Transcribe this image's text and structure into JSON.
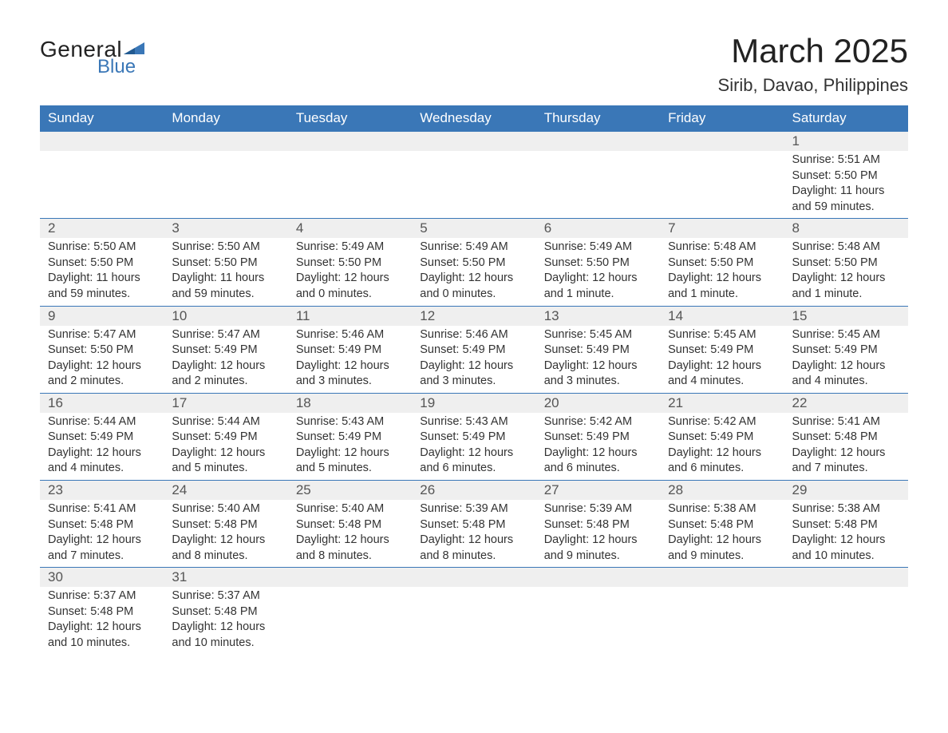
{
  "logo": {
    "general": "General",
    "blue": "Blue"
  },
  "title": "March 2025",
  "location": "Sirib, Davao, Philippines",
  "colors": {
    "header_bg": "#3a77b7",
    "header_text": "#ffffff",
    "daynum_bg": "#efefef",
    "border": "#3a77b7",
    "text": "#333333",
    "logo_blue": "#3a77b7"
  },
  "weekdays": [
    "Sunday",
    "Monday",
    "Tuesday",
    "Wednesday",
    "Thursday",
    "Friday",
    "Saturday"
  ],
  "weeks": [
    [
      null,
      null,
      null,
      null,
      null,
      null,
      {
        "d": "1",
        "sr": "Sunrise: 5:51 AM",
        "ss": "Sunset: 5:50 PM",
        "dl": "Daylight: 11 hours and 59 minutes."
      }
    ],
    [
      {
        "d": "2",
        "sr": "Sunrise: 5:50 AM",
        "ss": "Sunset: 5:50 PM",
        "dl": "Daylight: 11 hours and 59 minutes."
      },
      {
        "d": "3",
        "sr": "Sunrise: 5:50 AM",
        "ss": "Sunset: 5:50 PM",
        "dl": "Daylight: 11 hours and 59 minutes."
      },
      {
        "d": "4",
        "sr": "Sunrise: 5:49 AM",
        "ss": "Sunset: 5:50 PM",
        "dl": "Daylight: 12 hours and 0 minutes."
      },
      {
        "d": "5",
        "sr": "Sunrise: 5:49 AM",
        "ss": "Sunset: 5:50 PM",
        "dl": "Daylight: 12 hours and 0 minutes."
      },
      {
        "d": "6",
        "sr": "Sunrise: 5:49 AM",
        "ss": "Sunset: 5:50 PM",
        "dl": "Daylight: 12 hours and 1 minute."
      },
      {
        "d": "7",
        "sr": "Sunrise: 5:48 AM",
        "ss": "Sunset: 5:50 PM",
        "dl": "Daylight: 12 hours and 1 minute."
      },
      {
        "d": "8",
        "sr": "Sunrise: 5:48 AM",
        "ss": "Sunset: 5:50 PM",
        "dl": "Daylight: 12 hours and 1 minute."
      }
    ],
    [
      {
        "d": "9",
        "sr": "Sunrise: 5:47 AM",
        "ss": "Sunset: 5:50 PM",
        "dl": "Daylight: 12 hours and 2 minutes."
      },
      {
        "d": "10",
        "sr": "Sunrise: 5:47 AM",
        "ss": "Sunset: 5:49 PM",
        "dl": "Daylight: 12 hours and 2 minutes."
      },
      {
        "d": "11",
        "sr": "Sunrise: 5:46 AM",
        "ss": "Sunset: 5:49 PM",
        "dl": "Daylight: 12 hours and 3 minutes."
      },
      {
        "d": "12",
        "sr": "Sunrise: 5:46 AM",
        "ss": "Sunset: 5:49 PM",
        "dl": "Daylight: 12 hours and 3 minutes."
      },
      {
        "d": "13",
        "sr": "Sunrise: 5:45 AM",
        "ss": "Sunset: 5:49 PM",
        "dl": "Daylight: 12 hours and 3 minutes."
      },
      {
        "d": "14",
        "sr": "Sunrise: 5:45 AM",
        "ss": "Sunset: 5:49 PM",
        "dl": "Daylight: 12 hours and 4 minutes."
      },
      {
        "d": "15",
        "sr": "Sunrise: 5:45 AM",
        "ss": "Sunset: 5:49 PM",
        "dl": "Daylight: 12 hours and 4 minutes."
      }
    ],
    [
      {
        "d": "16",
        "sr": "Sunrise: 5:44 AM",
        "ss": "Sunset: 5:49 PM",
        "dl": "Daylight: 12 hours and 4 minutes."
      },
      {
        "d": "17",
        "sr": "Sunrise: 5:44 AM",
        "ss": "Sunset: 5:49 PM",
        "dl": "Daylight: 12 hours and 5 minutes."
      },
      {
        "d": "18",
        "sr": "Sunrise: 5:43 AM",
        "ss": "Sunset: 5:49 PM",
        "dl": "Daylight: 12 hours and 5 minutes."
      },
      {
        "d": "19",
        "sr": "Sunrise: 5:43 AM",
        "ss": "Sunset: 5:49 PM",
        "dl": "Daylight: 12 hours and 6 minutes."
      },
      {
        "d": "20",
        "sr": "Sunrise: 5:42 AM",
        "ss": "Sunset: 5:49 PM",
        "dl": "Daylight: 12 hours and 6 minutes."
      },
      {
        "d": "21",
        "sr": "Sunrise: 5:42 AM",
        "ss": "Sunset: 5:49 PM",
        "dl": "Daylight: 12 hours and 6 minutes."
      },
      {
        "d": "22",
        "sr": "Sunrise: 5:41 AM",
        "ss": "Sunset: 5:48 PM",
        "dl": "Daylight: 12 hours and 7 minutes."
      }
    ],
    [
      {
        "d": "23",
        "sr": "Sunrise: 5:41 AM",
        "ss": "Sunset: 5:48 PM",
        "dl": "Daylight: 12 hours and 7 minutes."
      },
      {
        "d": "24",
        "sr": "Sunrise: 5:40 AM",
        "ss": "Sunset: 5:48 PM",
        "dl": "Daylight: 12 hours and 8 minutes."
      },
      {
        "d": "25",
        "sr": "Sunrise: 5:40 AM",
        "ss": "Sunset: 5:48 PM",
        "dl": "Daylight: 12 hours and 8 minutes."
      },
      {
        "d": "26",
        "sr": "Sunrise: 5:39 AM",
        "ss": "Sunset: 5:48 PM",
        "dl": "Daylight: 12 hours and 8 minutes."
      },
      {
        "d": "27",
        "sr": "Sunrise: 5:39 AM",
        "ss": "Sunset: 5:48 PM",
        "dl": "Daylight: 12 hours and 9 minutes."
      },
      {
        "d": "28",
        "sr": "Sunrise: 5:38 AM",
        "ss": "Sunset: 5:48 PM",
        "dl": "Daylight: 12 hours and 9 minutes."
      },
      {
        "d": "29",
        "sr": "Sunrise: 5:38 AM",
        "ss": "Sunset: 5:48 PM",
        "dl": "Daylight: 12 hours and 10 minutes."
      }
    ],
    [
      {
        "d": "30",
        "sr": "Sunrise: 5:37 AM",
        "ss": "Sunset: 5:48 PM",
        "dl": "Daylight: 12 hours and 10 minutes."
      },
      {
        "d": "31",
        "sr": "Sunrise: 5:37 AM",
        "ss": "Sunset: 5:48 PM",
        "dl": "Daylight: 12 hours and 10 minutes."
      },
      null,
      null,
      null,
      null,
      null
    ]
  ]
}
